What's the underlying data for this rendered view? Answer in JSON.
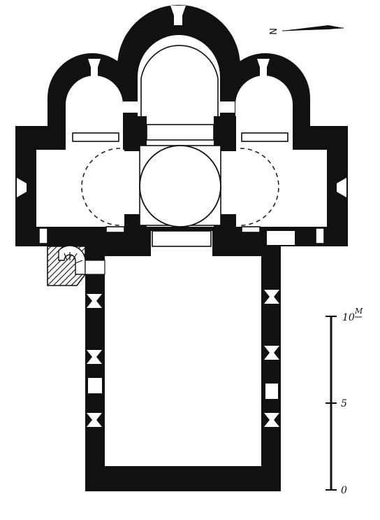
{
  "compass": {
    "letter": "N"
  },
  "scale": {
    "unit": "M",
    "ticks": [
      {
        "label": "10",
        "value": 10
      },
      {
        "label": "5",
        "value": 5
      },
      {
        "label": "0",
        "value": 0
      }
    ]
  },
  "colors": {
    "wall": "#111111",
    "paper": "#ffffff",
    "dashed": "#222222"
  }
}
